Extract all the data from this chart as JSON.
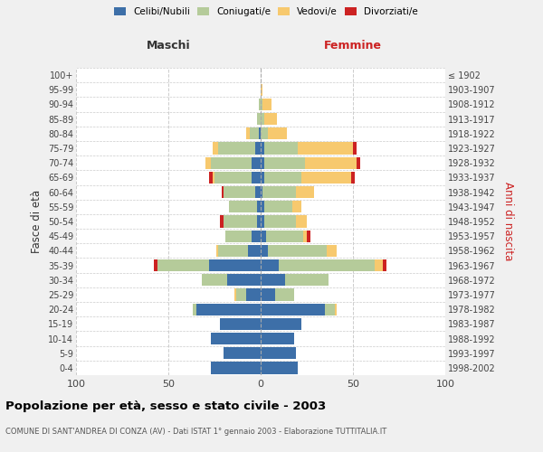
{
  "age_groups": [
    "0-4",
    "5-9",
    "10-14",
    "15-19",
    "20-24",
    "25-29",
    "30-34",
    "35-39",
    "40-44",
    "45-49",
    "50-54",
    "55-59",
    "60-64",
    "65-69",
    "70-74",
    "75-79",
    "80-84",
    "85-89",
    "90-94",
    "95-99",
    "100+"
  ],
  "birth_years": [
    "1998-2002",
    "1993-1997",
    "1988-1992",
    "1983-1987",
    "1978-1982",
    "1973-1977",
    "1968-1972",
    "1963-1967",
    "1958-1962",
    "1953-1957",
    "1948-1952",
    "1943-1947",
    "1938-1942",
    "1933-1937",
    "1928-1932",
    "1923-1927",
    "1918-1922",
    "1913-1917",
    "1908-1912",
    "1903-1907",
    "≤ 1902"
  ],
  "maschi": {
    "celibi": [
      27,
      20,
      27,
      22,
      35,
      8,
      18,
      28,
      7,
      5,
      2,
      2,
      3,
      5,
      5,
      3,
      1,
      0,
      0,
      0,
      0
    ],
    "coniugati": [
      0,
      0,
      0,
      0,
      2,
      5,
      14,
      28,
      16,
      14,
      18,
      15,
      17,
      20,
      22,
      20,
      5,
      2,
      1,
      0,
      0
    ],
    "vedovi": [
      0,
      0,
      0,
      0,
      0,
      1,
      0,
      0,
      1,
      0,
      0,
      0,
      0,
      1,
      3,
      3,
      2,
      0,
      0,
      0,
      0
    ],
    "divorziati": [
      0,
      0,
      0,
      0,
      0,
      0,
      0,
      2,
      0,
      0,
      2,
      0,
      1,
      2,
      0,
      0,
      0,
      0,
      0,
      0,
      0
    ]
  },
  "femmine": {
    "nubili": [
      20,
      19,
      18,
      22,
      35,
      8,
      13,
      10,
      4,
      3,
      2,
      2,
      1,
      2,
      2,
      2,
      0,
      0,
      0,
      0,
      0
    ],
    "coniugate": [
      0,
      0,
      0,
      0,
      5,
      10,
      24,
      52,
      32,
      20,
      17,
      15,
      18,
      20,
      22,
      18,
      4,
      2,
      1,
      0,
      0
    ],
    "vedove": [
      0,
      0,
      0,
      0,
      1,
      0,
      0,
      4,
      5,
      2,
      6,
      5,
      10,
      27,
      28,
      30,
      10,
      7,
      5,
      1,
      0
    ],
    "divorziate": [
      0,
      0,
      0,
      0,
      0,
      0,
      0,
      2,
      0,
      2,
      0,
      0,
      0,
      2,
      2,
      2,
      0,
      0,
      0,
      0,
      0
    ]
  },
  "colors": {
    "celibi": "#3d6fa8",
    "coniugati": "#b5cb9a",
    "vedovi": "#f7c96e",
    "divorziati": "#cc2222"
  },
  "xlim": 100,
  "title": "Popolazione per età, sesso e stato civile - 2003",
  "subtitle": "COMUNE DI SANT'ANDREA DI CONZA (AV) - Dati ISTAT 1° gennaio 2003 - Elaborazione TUTTITALIA.IT",
  "ylabel_left": "Fasce di età",
  "ylabel_right": "Anni di nascita",
  "xlabel_left": "Maschi",
  "xlabel_right": "Femmine",
  "bg_color": "#f0f0f0",
  "plot_bg": "#ffffff",
  "legend_labels": [
    "Celibi/Nubili",
    "Coniugati/e",
    "Vedovi/e",
    "Divorziati/e"
  ]
}
